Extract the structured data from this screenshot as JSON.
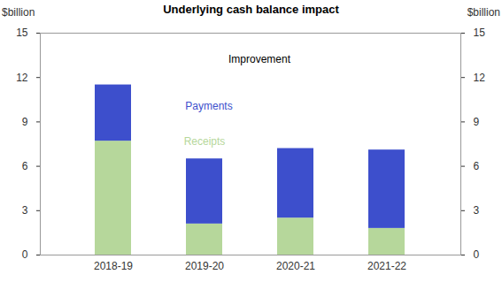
{
  "chart_data": {
    "type": "bar",
    "title": "Underlying cash balance impact",
    "y_label": "$billion",
    "y2_label": "$billion",
    "annotations": [
      "Improvement"
    ],
    "categories": [
      "2018-19",
      "2019-20",
      "2020-21",
      "2021-22"
    ],
    "series": [
      {
        "name": "Receipts",
        "color": "#b6d79b",
        "values": [
          7.7,
          2.1,
          2.5,
          1.8
        ]
      },
      {
        "name": "Payments",
        "color": "#3d4fcc",
        "values": [
          3.8,
          4.4,
          4.7,
          5.3
        ]
      }
    ],
    "ylim": [
      0,
      15
    ],
    "yticks": [
      0,
      3,
      6,
      9,
      12,
      15
    ],
    "stacked": true,
    "legend": "top"
  }
}
